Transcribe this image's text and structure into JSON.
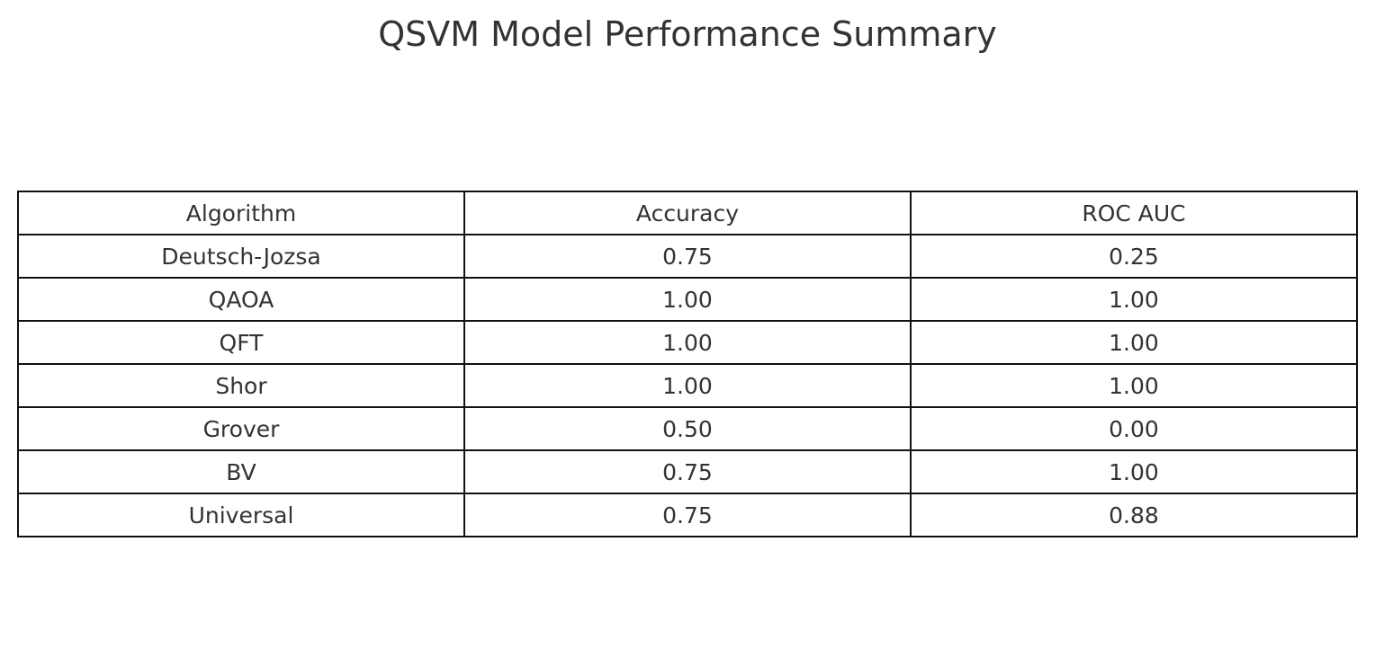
{
  "chart_data": {
    "type": "table",
    "title": "QSVM Model Performance Summary",
    "columns": [
      "Algorithm",
      "Accuracy",
      "ROC AUC"
    ],
    "rows": [
      [
        "Deutsch-Jozsa",
        "0.75",
        "0.25"
      ],
      [
        "QAOA",
        "1.00",
        "1.00"
      ],
      [
        "QFT",
        "1.00",
        "1.00"
      ],
      [
        "Shor",
        "1.00",
        "1.00"
      ],
      [
        "Grover",
        "0.50",
        "0.00"
      ],
      [
        "BV",
        "0.75",
        "1.00"
      ],
      [
        "Universal",
        "0.75",
        "0.88"
      ]
    ]
  }
}
